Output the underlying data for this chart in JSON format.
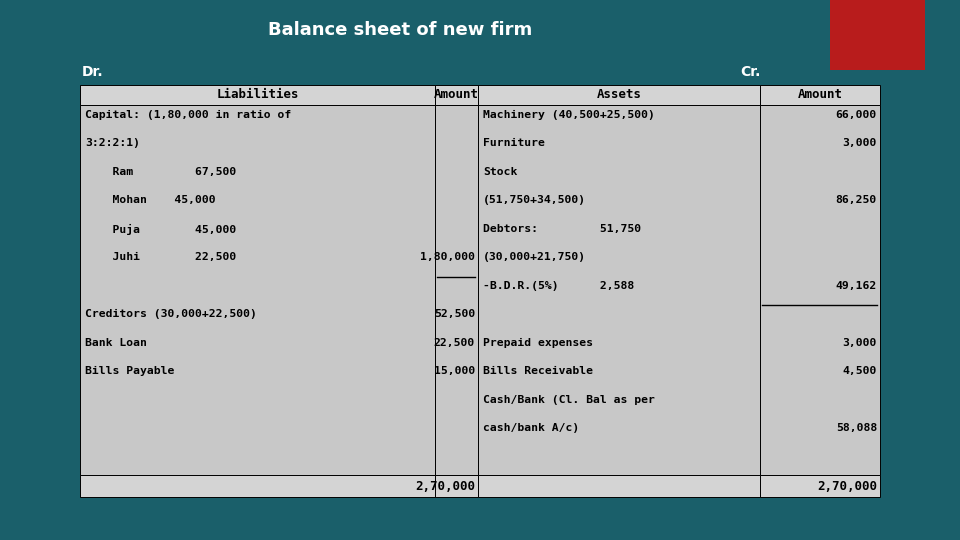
{
  "title": "Balance sheet of new firm",
  "dr_label": "Dr.",
  "cr_label": "Cr.",
  "bg_color": "#1a5f6a",
  "header_bg": "#d4d4d4",
  "cell_bg": "#c8c8c8",
  "header_font_size": 9,
  "cell_font_size": 8.2,
  "title_font_size": 13,
  "red_box_color": "#b81c1c",
  "liabilities_lines": [
    {
      "text": "Capital: (1,80,000 in ratio of",
      "indent": 0,
      "amount": "",
      "underline": false
    },
    {
      "text": "3:2:2:1)",
      "indent": 0,
      "amount": "",
      "underline": false
    },
    {
      "text": "    Ram         67,500",
      "indent": 0,
      "amount": "",
      "underline": false
    },
    {
      "text": "    Mohan    45,000",
      "indent": 0,
      "amount": "",
      "underline": false
    },
    {
      "text": "    Puja        45,000",
      "indent": 0,
      "amount": "",
      "underline": false
    },
    {
      "text": "    Juhi        22,500",
      "indent": 0,
      "amount": "1,80,000",
      "underline": true
    },
    {
      "text": "",
      "indent": 0,
      "amount": "",
      "underline": false
    },
    {
      "text": "Creditors (30,000+22,500)",
      "indent": 0,
      "amount": "52,500",
      "underline": false
    },
    {
      "text": "Bank Loan",
      "indent": 0,
      "amount": "22,500",
      "underline": false
    },
    {
      "text": "Bills Payable",
      "indent": 0,
      "amount": "15,000",
      "underline": false
    }
  ],
  "assets_lines": [
    {
      "text": "Machinery (40,500+25,500)",
      "indent": 0,
      "amount": "66,000",
      "underline": false
    },
    {
      "text": "Furniture",
      "indent": 0,
      "amount": "3,000",
      "underline": false
    },
    {
      "text": "Stock",
      "indent": 0,
      "amount": "",
      "underline": false
    },
    {
      "text": "(51,750+34,500)",
      "indent": 0,
      "amount": "86,250",
      "underline": false
    },
    {
      "text": "Debtors:         51,750",
      "indent": 0,
      "amount": "",
      "underline": false
    },
    {
      "text": "(30,000+21,750)",
      "indent": 0,
      "amount": "",
      "underline": false
    },
    {
      "text": "-B.D.R.(5%)      2,588",
      "indent": 0,
      "amount": "49,162",
      "underline": true
    },
    {
      "text": "",
      "indent": 0,
      "amount": "",
      "underline": false
    },
    {
      "text": "Prepaid expenses",
      "indent": 0,
      "amount": "3,000",
      "underline": false
    },
    {
      "text": "Bills Receivable",
      "indent": 0,
      "amount": "4,500",
      "underline": false
    },
    {
      "text": "Cash/Bank (Cl. Bal as per",
      "indent": 0,
      "amount": "",
      "underline": false
    },
    {
      "text": "cash/bank A/c)",
      "indent": 0,
      "amount": "58,088",
      "underline": false
    }
  ],
  "total_amount": "2,70,000"
}
